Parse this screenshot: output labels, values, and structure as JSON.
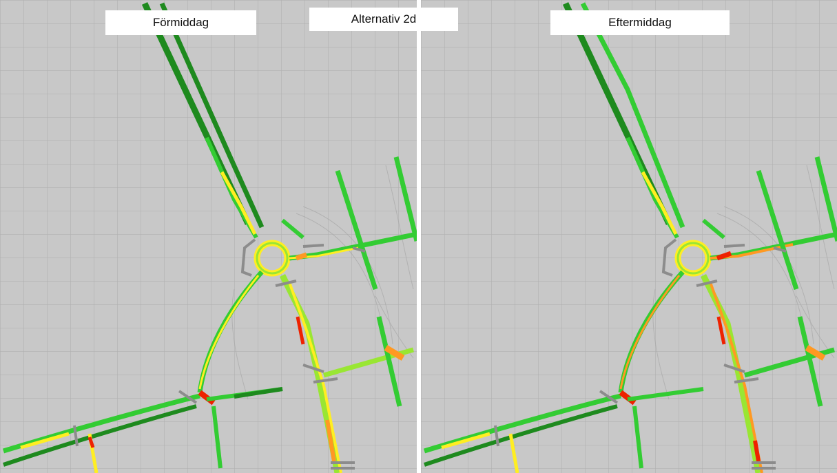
{
  "labels": {
    "left": "Förmiddag",
    "center": "Alternativ 2d",
    "right": "Eftermiddag"
  },
  "legend_colors": {
    "free_flow_dark": "#1e8a1e",
    "free_flow": "#33cc33",
    "light": "#99e633",
    "moderate": "#ffee22",
    "heavy": "#ff9922",
    "congested": "#ee2200",
    "structure": "#8c8c8c"
  },
  "panels": [
    {
      "name": "morning",
      "label_ref": "labels.left"
    },
    {
      "name": "afternoon",
      "label_ref": "labels.right"
    }
  ]
}
